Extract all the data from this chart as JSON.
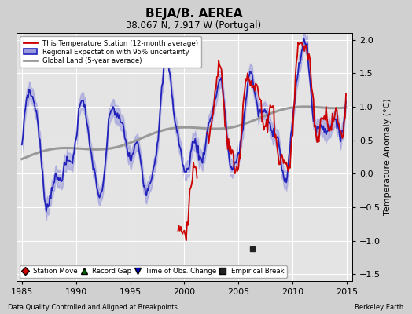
{
  "title": "BEJA/B. AEREA",
  "subtitle": "38.067 N, 7.917 W (Portugal)",
  "ylabel": "Temperature Anomaly (°C)",
  "xlabel_left": "Data Quality Controlled and Aligned at Breakpoints",
  "xlabel_right": "Berkeley Earth",
  "xlim": [
    1984.5,
    2015.5
  ],
  "ylim": [
    -1.6,
    2.1
  ],
  "yticks": [
    -1.5,
    -1.0,
    -0.5,
    0.0,
    0.5,
    1.0,
    1.5,
    2.0
  ],
  "xticks": [
    1985,
    1990,
    1995,
    2000,
    2005,
    2010,
    2015
  ],
  "bg_color": "#d0d0d0",
  "plot_bg_color": "#e4e4e4",
  "grid_color": "white",
  "regional_color": "#2222bb",
  "regional_fill_color": "#9999dd",
  "station_color": "#cc0000",
  "global_color": "#999999",
  "empirical_break_x": 2006.3,
  "empirical_break_y": -1.12,
  "legend1_labels": [
    "This Temperature Station (12-month average)",
    "Regional Expectation with 95% uncertainty",
    "Global Land (5-year average)"
  ],
  "legend2_labels": [
    "Station Move",
    "Record Gap",
    "Time of Obs. Change",
    "Empirical Break"
  ],
  "legend2_colors": [
    "#cc0000",
    "#006600",
    "#0000cc",
    "#222222"
  ],
  "legend2_markers": [
    "D",
    "^",
    "v",
    "s"
  ]
}
